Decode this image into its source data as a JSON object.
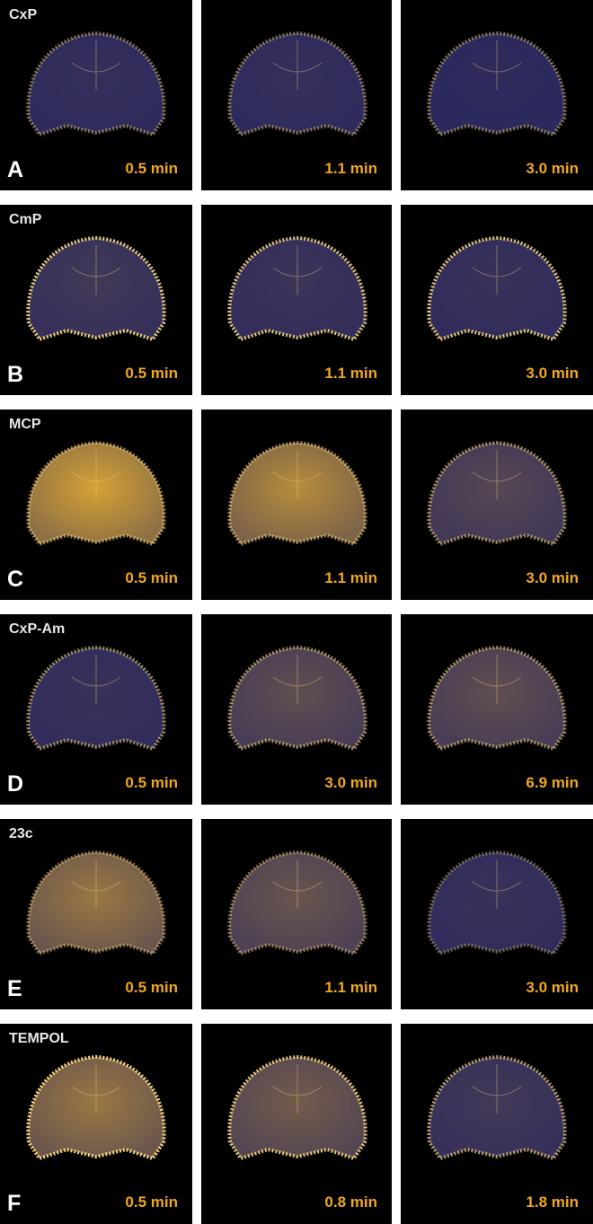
{
  "panels": [
    {
      "letter": "A",
      "compound": "CxP",
      "times": [
        "0.5 min",
        "1.1 min",
        "3.0 min"
      ]
    },
    {
      "letter": "B",
      "compound": "CmP",
      "times": [
        "0.5 min",
        "1.1 min",
        "3.0 min"
      ]
    },
    {
      "letter": "C",
      "compound": "MCP",
      "times": [
        "0.5 min",
        "1.1 min",
        "3.0 min"
      ]
    },
    {
      "letter": "D",
      "compound": "CxP-Am",
      "times": [
        "0.5 min",
        "3.0 min",
        "6.9 min"
      ]
    },
    {
      "letter": "E",
      "compound": "23c",
      "times": [
        "0.5 min",
        "1.1 min",
        "3.0 min"
      ]
    },
    {
      "letter": "F",
      "compound": "TEMPOL",
      "times": [
        "0.5 min",
        "0.8 min",
        "1.8 min"
      ]
    }
  ]
}
